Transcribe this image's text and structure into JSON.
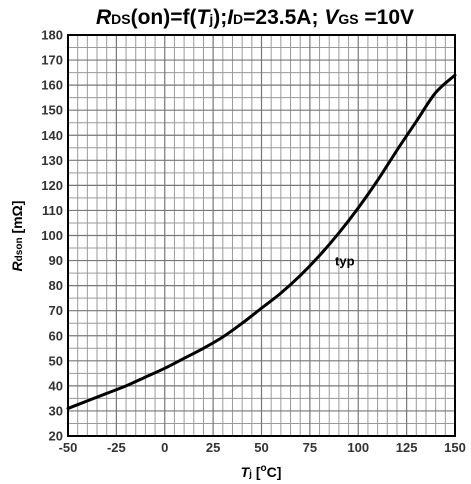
{
  "chart_data": {
    "type": "line",
    "title": {
      "r": "R",
      "r_sub": "DS",
      "mid": "(on)=f(",
      "t": "T",
      "t_sub": "j",
      "mid2": ");",
      "i": "I",
      "i_sub": "D",
      "mid3": "=23.5A; ",
      "v": "V",
      "v_sub": "GS",
      "end": " =10V"
    },
    "xlabel": {
      "sym": "T",
      "sub": "j",
      "unit_open": " [",
      "deg": "o",
      "unit_close": "C]"
    },
    "ylabel": {
      "sym": "R",
      "sub": "dson",
      "unit": " [mΩ]"
    },
    "xlim": [
      -50,
      150
    ],
    "ylim": [
      20,
      180
    ],
    "xticks": [
      -50,
      -25,
      0,
      25,
      50,
      75,
      100,
      125,
      150
    ],
    "yticks": [
      20,
      30,
      40,
      50,
      60,
      70,
      80,
      90,
      100,
      110,
      120,
      130,
      140,
      150,
      160,
      170,
      180
    ],
    "x_minor_step": 5,
    "y_minor_step": 5,
    "grid": true,
    "series": [
      {
        "name": "typ",
        "x": [
          -50,
          -40,
          -30,
          -20,
          -10,
          0,
          10,
          20,
          30,
          40,
          50,
          60,
          70,
          80,
          90,
          100,
          110,
          120,
          130,
          140,
          150
        ],
        "y": [
          31,
          34,
          37,
          40,
          43.5,
          47,
          51,
          55,
          59.5,
          65,
          71,
          77,
          84,
          92,
          101,
          111,
          122,
          134,
          145.5,
          157,
          164
        ]
      }
    ],
    "annotations": [
      {
        "text": "typ",
        "x": 88,
        "y": 88
      }
    ]
  }
}
